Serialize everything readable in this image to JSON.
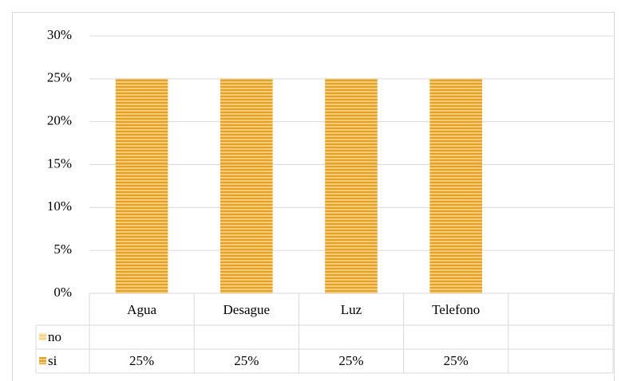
{
  "chart_data": {
    "type": "bar",
    "categories": [
      "Agua",
      "Desague",
      "Luz",
      "Telefono",
      null
    ],
    "series": [
      {
        "name": "no",
        "color": "#f9d27a",
        "values": [
          null,
          null,
          null,
          null,
          null
        ]
      },
      {
        "name": "si",
        "color": "#e8a21a",
        "values": [
          25,
          25,
          25,
          25,
          null
        ],
        "value_labels": [
          "25%",
          "25%",
          "25%",
          "25%",
          null
        ]
      }
    ],
    "ylim": [
      0,
      30
    ],
    "yticks": [
      {
        "value": 0,
        "label": "0%"
      },
      {
        "value": 5,
        "label": "5%"
      },
      {
        "value": 10,
        "label": "10%"
      },
      {
        "value": 15,
        "label": "15%"
      },
      {
        "value": 20,
        "label": "20%"
      },
      {
        "value": 25,
        "label": "25%"
      },
      {
        "value": 30,
        "label": "30%"
      }
    ],
    "grid": true
  }
}
